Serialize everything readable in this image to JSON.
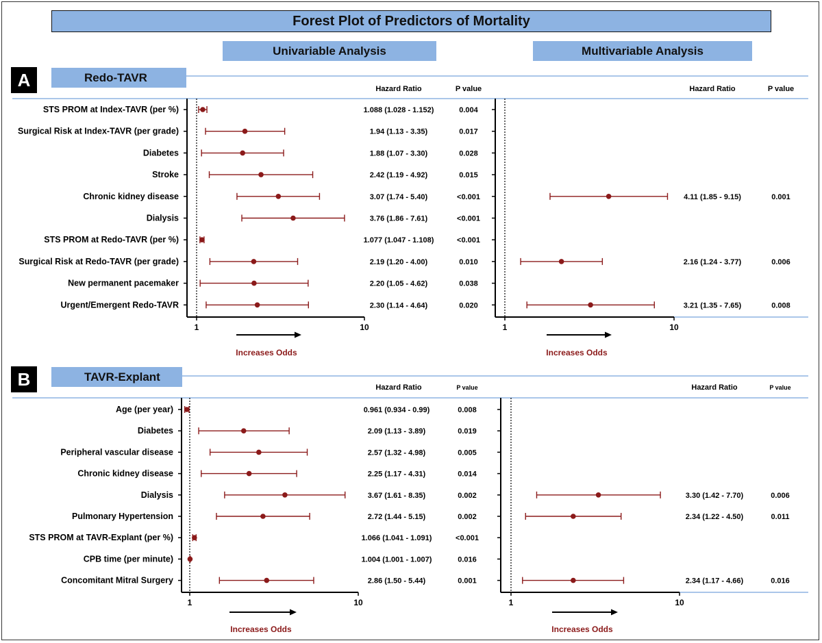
{
  "title": "Forest Plot of Predictors of Mortality",
  "column_headers": {
    "univariable": "Univariable Analysis",
    "multivariable": "Multivariable Analysis"
  },
  "colors": {
    "header_fill": "#8db3e2",
    "marker": "#8b1a1a",
    "rule_line": "#8db3e2",
    "annotation_text": "#8b1a1a"
  },
  "chart_data": [
    {
      "type": "forest",
      "panel_letter": "A",
      "section_title": "Redo-TAVR",
      "hr_header": "Hazard Ratio",
      "p_header": "P value",
      "xscale": "log",
      "xlim": [
        0.95,
        10
      ],
      "xticks": [
        "1",
        "10"
      ],
      "reference_line": 1,
      "arrow_label": "Increases Odds",
      "rows": [
        {
          "label": "STS PROM at Index-TAVR (per %)",
          "uni": {
            "est": 1.088,
            "lo": 1.028,
            "hi": 1.152,
            "text": "1.088 (1.028 - 1.152)",
            "p": "0.004"
          },
          "multi": null
        },
        {
          "label": "Surgical Risk at Index-TAVR (per grade)",
          "uni": {
            "est": 1.94,
            "lo": 1.13,
            "hi": 3.35,
            "text": "1.94 (1.13 - 3.35)",
            "p": "0.017"
          },
          "multi": null
        },
        {
          "label": "Diabetes",
          "uni": {
            "est": 1.88,
            "lo": 1.07,
            "hi": 3.3,
            "text": "1.88 (1.07 - 3.30)",
            "p": "0.028"
          },
          "multi": null
        },
        {
          "label": "Stroke",
          "uni": {
            "est": 2.42,
            "lo": 1.19,
            "hi": 4.92,
            "text": "2.42 (1.19 - 4.92)",
            "p": "0.015"
          },
          "multi": null
        },
        {
          "label": "Chronic kidney disease",
          "uni": {
            "est": 3.07,
            "lo": 1.74,
            "hi": 5.4,
            "text": "3.07 (1.74 - 5.40)",
            "p": "<0.001"
          },
          "multi": {
            "est": 4.11,
            "lo": 1.85,
            "hi": 9.15,
            "text": "4.11 (1.85 - 9.15)",
            "p": "0.001"
          }
        },
        {
          "label": "Dialysis",
          "uni": {
            "est": 3.76,
            "lo": 1.86,
            "hi": 7.61,
            "text": "3.76 (1.86 - 7.61)",
            "p": "<0.001"
          },
          "multi": null
        },
        {
          "label": "STS PROM at Redo-TAVR (per %)",
          "uni": {
            "est": 1.077,
            "lo": 1.047,
            "hi": 1.108,
            "text": "1.077 (1.047 - 1.108)",
            "p": "<0.001"
          },
          "multi": null
        },
        {
          "label": "Surgical Risk at Redo-TAVR (per grade)",
          "uni": {
            "est": 2.19,
            "lo": 1.2,
            "hi": 4.0,
            "text": "2.19 (1.20 - 4.00)",
            "p": "0.010"
          },
          "multi": {
            "est": 2.16,
            "lo": 1.24,
            "hi": 3.77,
            "text": "2.16 (1.24 - 3.77)",
            "p": "0.006"
          }
        },
        {
          "label": "New permanent pacemaker",
          "uni": {
            "est": 2.2,
            "lo": 1.05,
            "hi": 4.62,
            "text": "2.20 (1.05 - 4.62)",
            "p": "0.038"
          },
          "multi": null
        },
        {
          "label": "Urgent/Emergent Redo-TAVR",
          "uni": {
            "est": 2.3,
            "lo": 1.14,
            "hi": 4.64,
            "text": "2.30 (1.14 - 4.64)",
            "p": "0.020"
          },
          "multi": {
            "est": 3.21,
            "lo": 1.35,
            "hi": 7.65,
            "text": "3.21 (1.35 - 7.65)",
            "p": "0.008"
          }
        }
      ]
    },
    {
      "type": "forest",
      "panel_letter": "B",
      "section_title": "TAVR-Explant",
      "hr_header": "Hazard Ratio",
      "p_header": "P value",
      "xscale": "log",
      "xlim": [
        0.95,
        10
      ],
      "xticks": [
        "1",
        "10"
      ],
      "reference_line": 1,
      "arrow_label": "Increases Odds",
      "rows": [
        {
          "label": "Age (per year)",
          "uni": {
            "est": 0.961,
            "lo": 0.934,
            "hi": 0.99,
            "text": "0.961 (0.934 - 0.99)",
            "p": "0.008"
          },
          "multi": null
        },
        {
          "label": "Diabetes",
          "uni": {
            "est": 2.09,
            "lo": 1.13,
            "hi": 3.89,
            "text": "2.09 (1.13 - 3.89)",
            "p": "0.019"
          },
          "multi": null
        },
        {
          "label": "Peripheral vascular disease",
          "uni": {
            "est": 2.57,
            "lo": 1.32,
            "hi": 4.98,
            "text": "2.57 (1.32 - 4.98)",
            "p": "0.005"
          },
          "multi": null
        },
        {
          "label": "Chronic kidney disease",
          "uni": {
            "est": 2.25,
            "lo": 1.17,
            "hi": 4.31,
            "text": "2.25 (1.17 - 4.31)",
            "p": "0.014"
          },
          "multi": null
        },
        {
          "label": "Dialysis",
          "uni": {
            "est": 3.67,
            "lo": 1.61,
            "hi": 8.35,
            "text": "3.67 (1.61 - 8.35)",
            "p": "0.002"
          },
          "multi": {
            "est": 3.3,
            "lo": 1.42,
            "hi": 7.7,
            "text": "3.30 (1.42 - 7.70)",
            "p": "0.006"
          }
        },
        {
          "label": "Pulmonary Hypertension",
          "uni": {
            "est": 2.72,
            "lo": 1.44,
            "hi": 5.15,
            "text": "2.72 (1.44 - 5.15)",
            "p": "0.002"
          },
          "multi": {
            "est": 2.34,
            "lo": 1.22,
            "hi": 4.5,
            "text": "2.34 (1.22 - 4.50)",
            "p": "0.011"
          }
        },
        {
          "label": "STS PROM at TAVR-Explant (per %)",
          "uni": {
            "est": 1.066,
            "lo": 1.041,
            "hi": 1.091,
            "text": "1.066 (1.041 - 1.091)",
            "p": "<0.001"
          },
          "multi": null
        },
        {
          "label": "CPB time (per minute)",
          "uni": {
            "est": 1.004,
            "lo": 1.001,
            "hi": 1.007,
            "text": "1.004 (1.001 - 1.007)",
            "p": "0.016"
          },
          "multi": null
        },
        {
          "label": "Concomitant Mitral Surgery",
          "uni": {
            "est": 2.86,
            "lo": 1.5,
            "hi": 5.44,
            "text": "2.86 (1.50 - 5.44)",
            "p": "0.001"
          },
          "multi": {
            "est": 2.34,
            "lo": 1.17,
            "hi": 4.66,
            "text": "2.34 (1.17 - 4.66)",
            "p": "0.016"
          }
        }
      ]
    }
  ]
}
